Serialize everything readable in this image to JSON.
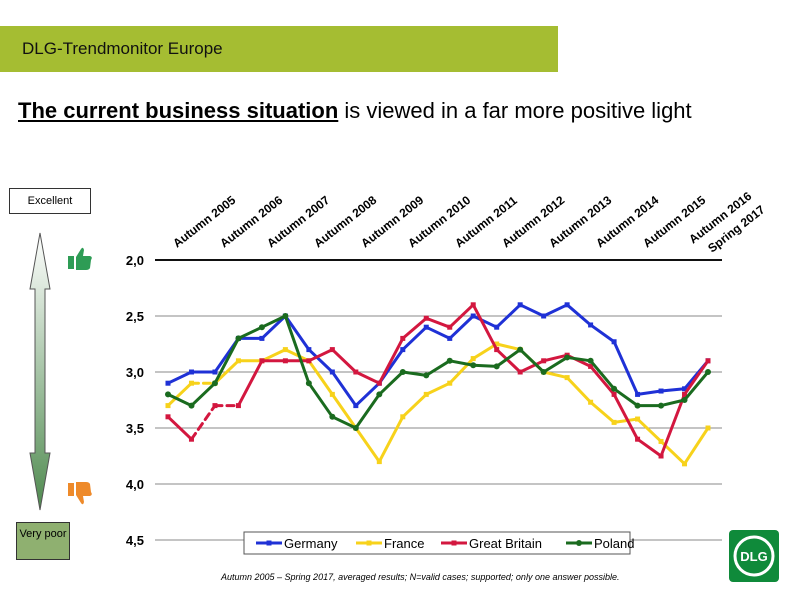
{
  "header": {
    "title": "DLG-Trendmonitor Europe"
  },
  "headline": {
    "emphasis": "The current business situation",
    "rest": " is viewed in a far more positive light"
  },
  "scale": {
    "top_label": "Excellent",
    "bottom_label": "Very poor"
  },
  "footnote": "Autumn 2005 – Spring 2017, averaged  results; N=valid  cases; supported; only one answer possible.",
  "logo": {
    "text": "DLG"
  },
  "icons": {
    "up": "thumbs-up-icon",
    "down": "thumbs-down-icon"
  },
  "colors": {
    "banner": "#a5bd32",
    "Germany": "#1f31d6",
    "France": "#f7d21b",
    "Great Britain": "#d3173f",
    "Poland": "#1a6b1f"
  },
  "chart_data": {
    "type": "line",
    "title": "",
    "xlabel": "",
    "ylabel": "",
    "ylim": [
      2.0,
      4.5
    ],
    "y_reversed": true,
    "yticks": [
      "2,0",
      "2,5",
      "3,0",
      "3,5",
      "4,0",
      "4,5"
    ],
    "x_tick_labels": [
      "Autumn 2005",
      "Autumn 2006",
      "Autumn 2007",
      "Autumn 2008",
      "Autumn 2009",
      "Autumn 2010",
      "Autumn 2011",
      "Autumn 2012",
      "Autumn 2013",
      "Autumn 2014",
      "Autumn 2015",
      "Autumn 2016",
      "Spring 2017"
    ],
    "x_start": 2005.75,
    "x_step": 0.5,
    "grid": true,
    "legend": "bottom",
    "series": [
      {
        "name": "Germany",
        "values": [
          3.1,
          3.0,
          3.0,
          2.7,
          2.7,
          2.5,
          2.8,
          3.0,
          3.3,
          3.1,
          2.8,
          2.6,
          2.7,
          2.5,
          2.6,
          2.4,
          2.5,
          2.4,
          2.58,
          2.73,
          3.2,
          3.17,
          3.15,
          2.9
        ]
      },
      {
        "name": "France",
        "values": [
          3.3,
          3.1,
          3.1,
          2.9,
          2.9,
          2.8,
          2.9,
          3.2,
          3.5,
          3.8,
          3.4,
          3.2,
          3.1,
          2.88,
          2.75,
          2.8,
          3.0,
          3.05,
          3.27,
          3.45,
          3.42,
          3.62,
          3.82,
          3.5
        ]
      },
      {
        "name": "Great Britain",
        "values": [
          3.4,
          3.6,
          3.3,
          3.3,
          2.9,
          2.9,
          2.9,
          2.8,
          3.0,
          3.1,
          2.7,
          2.52,
          2.6,
          2.4,
          2.8,
          3.0,
          2.9,
          2.85,
          2.95,
          3.2,
          3.6,
          3.75,
          3.2,
          2.9
        ]
      },
      {
        "name": "Poland",
        "values": [
          3.2,
          3.3,
          3.1,
          2.7,
          2.6,
          2.5,
          3.1,
          3.4,
          3.5,
          3.2,
          3.0,
          3.03,
          2.9,
          2.94,
          2.95,
          2.8,
          3.0,
          2.87,
          2.9,
          3.15,
          3.3,
          3.3,
          3.25,
          3.0
        ]
      }
    ],
    "dashed_segments": [
      {
        "series": "Great Britain",
        "from_index": 1,
        "to_index": 3
      },
      {
        "series": "France",
        "from_index": 1,
        "to_index": 2
      }
    ]
  }
}
